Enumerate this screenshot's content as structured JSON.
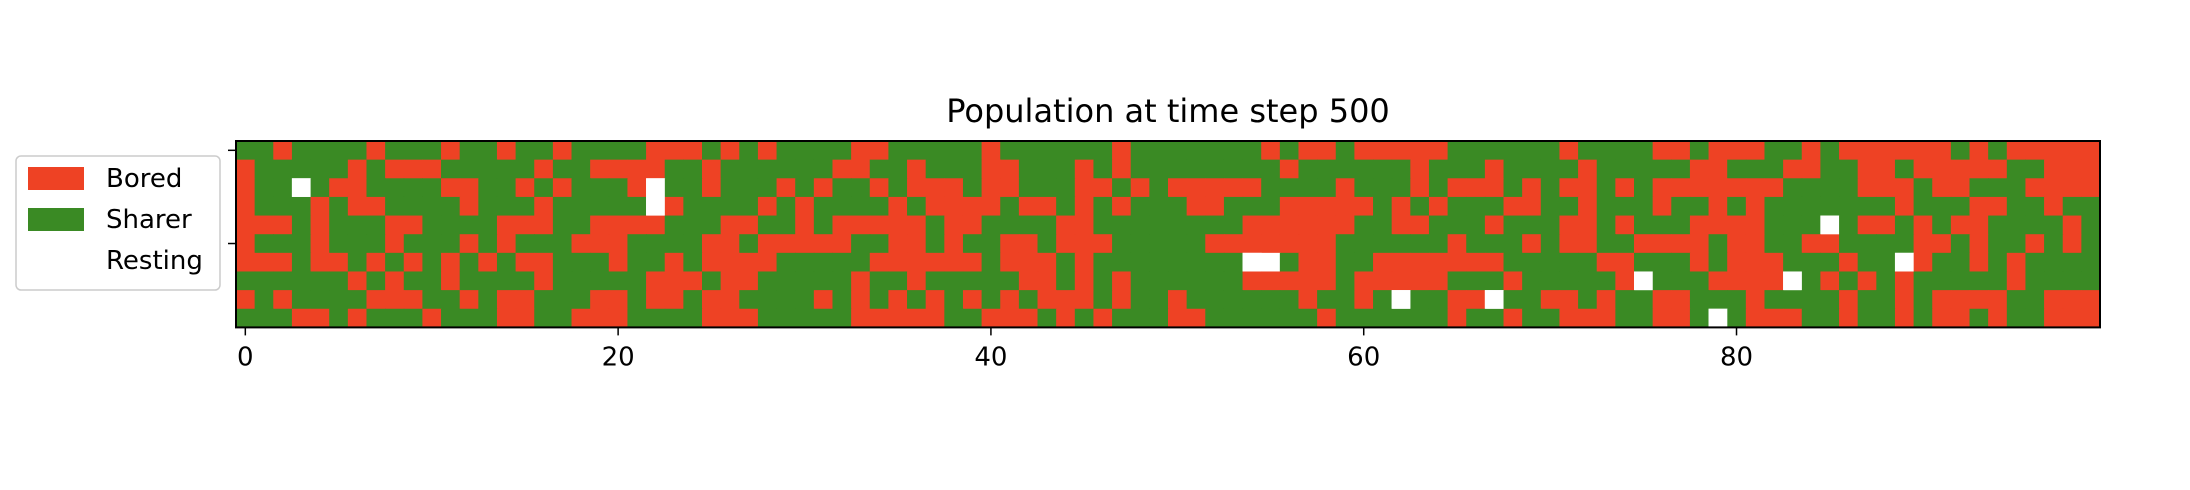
{
  "chart_data": {
    "type": "heatmap",
    "title": "Population at time step 500",
    "xlabel": "",
    "ylabel": "",
    "rows": 10,
    "cols": 100,
    "x_ticks": [
      0,
      20,
      40,
      60,
      80
    ],
    "x_tick_labels": [
      "0",
      "20",
      "40",
      "60",
      "80"
    ],
    "legend_position": "left",
    "legend": [
      {
        "label": "Bored",
        "color": "#ee4224"
      },
      {
        "label": "Sharer",
        "color": "#3a8a24"
      },
      {
        "label": "Resting",
        "color": "#ffffff"
      }
    ],
    "states": [
      "Bored",
      "Sharer",
      "Resting"
    ],
    "state_colors": [
      "#ee4224",
      "#3a8a24",
      "#ffffff"
    ],
    "grid": [
      "1101111011101101101111000101011110011111011111101111111010010000011111101111001000110100000010100000",
      "0111110100011111011000011011111100110111001110101111111101111110111011110111110011100110010000011000",
      "0111100111100110101110111011101011010001001110010100000111101110100010100101000000011110001001110000",
      "0111010011110111011111101111010111101000010010101110011100000101011100110111011010111111101110011011",
      "0001011100111100011000011100110100000100111100111111110000001100111011100101110000111110010100111101",
      "0111011101110101110001111001000001100101100100011111000000011111101110100110000100110011110010110101",
      "0001001010101010011101101000011111000000100010111111111210011000000011111001110100011101100110101111",
      "1111110101101111011111000100111110110111110010101111110000010000011101111101111000011010101111101111",
      "0101111000110100111001001001111010101010101000101101111110110101100011001011001110111101101000011000",
      "1110010111011100110001111000111110000011000101011100111111011111101101100011001110001101101001011000"
    ],
    "resting_cells": [
      [
        2,
        3
      ],
      [
        2,
        22
      ],
      [
        3,
        22
      ],
      [
        4,
        85
      ],
      [
        6,
        54
      ],
      [
        6,
        89
      ],
      [
        7,
        75
      ],
      [
        7,
        83
      ],
      [
        8,
        62
      ],
      [
        8,
        67
      ],
      [
        9,
        79
      ]
    ]
  }
}
